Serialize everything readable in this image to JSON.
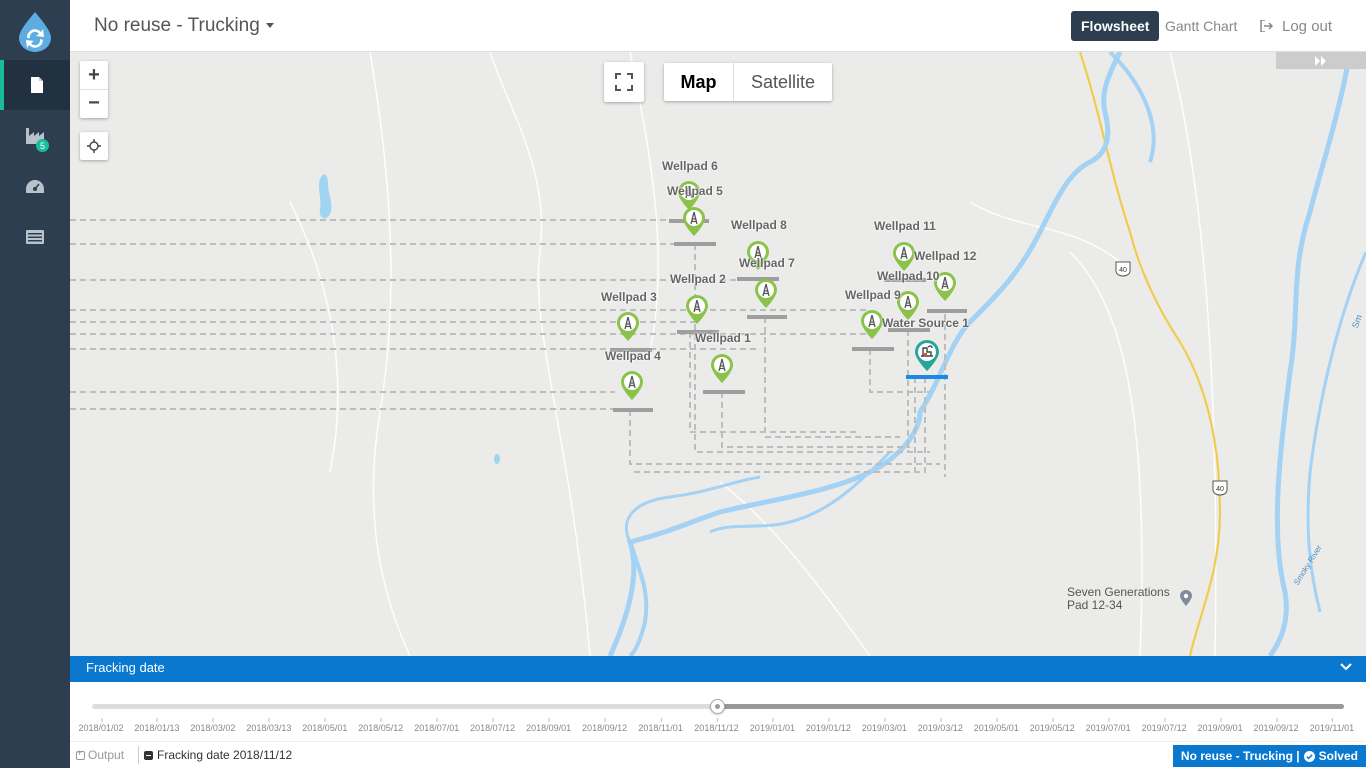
{
  "header": {
    "scenario_title": "No reuse - Trucking",
    "tabs": [
      {
        "label": "Flowsheet",
        "active": true
      },
      {
        "label": "Gantt Chart",
        "active": false
      }
    ],
    "logout_label": "Log out"
  },
  "sidebar": {
    "items": [
      {
        "icon": "file-icon",
        "active": true
      },
      {
        "icon": "factory-icon",
        "badge": "5"
      },
      {
        "icon": "dashboard-icon"
      },
      {
        "icon": "list-icon"
      }
    ]
  },
  "map": {
    "controls": {
      "zoom_in": "+",
      "zoom_out": "−",
      "map_type": [
        "Map",
        "Satellite"
      ],
      "selected_map_type": "Map"
    },
    "wellpads": [
      "Wellpad 1",
      "Wellpad 2",
      "Wellpad 3",
      "Wellpad 4",
      "Wellpad 5",
      "Wellpad 6",
      "Wellpad 7",
      "Wellpad 8",
      "Wellpad 9",
      "Wellpad 10",
      "Wellpad 11",
      "Wellpad 12"
    ],
    "water_source": "Water Source 1",
    "road_markers": [
      "40",
      "40"
    ],
    "place_label": "Seven Generations Pad 12-34",
    "river_label": "Smoky River",
    "edge_label": "Sm"
  },
  "timeline": {
    "panel_title": "Fracking date",
    "selected_date": "2018/11/12",
    "ticks": [
      "2018/01/02",
      "2018/01/13",
      "2018/03/02",
      "2018/03/13",
      "2018/05/01",
      "2018/05/12",
      "2018/07/01",
      "2018/07/12",
      "2018/09/01",
      "2018/09/12",
      "2018/11/01",
      "2018/11/12",
      "2019/01/01",
      "2019/01/12",
      "2019/03/01",
      "2019/03/12",
      "2019/05/01",
      "2019/05/12",
      "2019/07/01",
      "2019/07/12",
      "2019/09/01",
      "2019/09/12",
      "2019/11/01"
    ]
  },
  "statusbar": {
    "output_label": "Output",
    "fracking_label": "Fracking date 2018/11/12",
    "solved_label": "No reuse - Trucking |",
    "solved_suffix": "Solved"
  }
}
